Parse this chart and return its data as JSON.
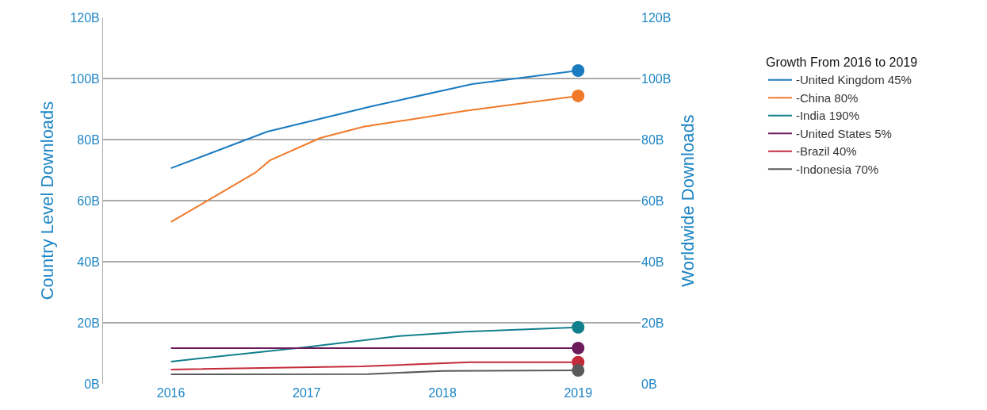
{
  "chart_data": {
    "type": "line",
    "ylabel": "Country Level Downloads",
    "y2label": "Worldwide Downloads",
    "legend_title": "Growth From 2016 to 2019",
    "xlim": [
      2015.5,
      2019.46
    ],
    "xticks": [
      2016,
      2017,
      2018,
      2019
    ],
    "ylim": [
      0,
      120
    ],
    "yticks": [
      {
        "value": 0,
        "label": "0B"
      },
      {
        "value": 20,
        "label": "20B"
      },
      {
        "value": 40,
        "label": "40B"
      },
      {
        "value": 60,
        "label": "60B"
      },
      {
        "value": 80,
        "label": "80B"
      },
      {
        "value": 100,
        "label": "100B"
      },
      {
        "value": 120,
        "label": "120B"
      }
    ],
    "y2lim": [
      0,
      120
    ],
    "y2ticks": [
      {
        "value": 0,
        "label": "0B"
      },
      {
        "value": 20,
        "label": "20B"
      },
      {
        "value": 40,
        "label": "40B"
      },
      {
        "value": 60,
        "label": "60B"
      },
      {
        "value": 80,
        "label": "80B"
      },
      {
        "value": 100,
        "label": "100B"
      },
      {
        "value": 120,
        "label": "120B"
      }
    ],
    "grid": "y",
    "legend": "right",
    "line_style": "solid",
    "series": [
      {
        "name": "-United Kingdom 45%",
        "color": "#1a7bc0",
        "x": [
          2016,
          2016.71,
          2017.48,
          2018.22,
          2019
        ],
        "values": [
          70.6,
          82.6,
          90.9,
          98.2,
          102.6
        ]
      },
      {
        "name": "-China 80%",
        "color": "#f07a2a",
        "x": [
          2016,
          2016.62,
          2016.73,
          2017.1,
          2017.42,
          2018.17,
          2019
        ],
        "values": [
          53,
          69.1,
          73.2,
          80.5,
          84.2,
          89.4,
          94.3
        ]
      },
      {
        "name": "-India 190%",
        "color": "#127f8c",
        "x": [
          2016,
          2016.97,
          2017.67,
          2018.17,
          2019
        ],
        "values": [
          7.3,
          11.9,
          15.6,
          17.1,
          18.5
        ]
      },
      {
        "name": "-United States 5%",
        "color": "#6b1a5a",
        "x": [
          2016,
          2019
        ],
        "values": [
          11.7,
          11.7
        ]
      },
      {
        "name": "-Brazil 40%",
        "color": "#c42b3a",
        "x": [
          2016,
          2017.4,
          2018.2,
          2019
        ],
        "values": [
          4.7,
          5.7,
          7.1,
          7.1
        ]
      },
      {
        "name": "-Indonesia 70%",
        "color": "#5a5a5a",
        "x": [
          2016,
          2017.45,
          2018,
          2019
        ],
        "values": [
          3.1,
          3.2,
          4.2,
          4.4
        ]
      },
      {
        "type": "scatter",
        "marker": "circle",
        "color": "#1a7bc0",
        "x": [
          2019
        ],
        "values": [
          102.6
        ]
      },
      {
        "type": "scatter",
        "marker": "circle",
        "color": "#f07a2a",
        "x": [
          2019
        ],
        "values": [
          94.3
        ]
      },
      {
        "type": "scatter",
        "marker": "circle",
        "color": "#127f8c",
        "x": [
          2019
        ],
        "values": [
          18.5
        ]
      },
      {
        "type": "scatter",
        "marker": "circle",
        "color": "#6b1a5a",
        "x": [
          2019
        ],
        "values": [
          11.7
        ]
      },
      {
        "type": "scatter",
        "marker": "circle",
        "color": "#c42b3a",
        "x": [
          2019
        ],
        "values": [
          7.1
        ]
      },
      {
        "type": "scatter",
        "marker": "circle",
        "color": "#5a5a5a",
        "x": [
          2019
        ],
        "values": [
          4.4
        ]
      }
    ]
  }
}
